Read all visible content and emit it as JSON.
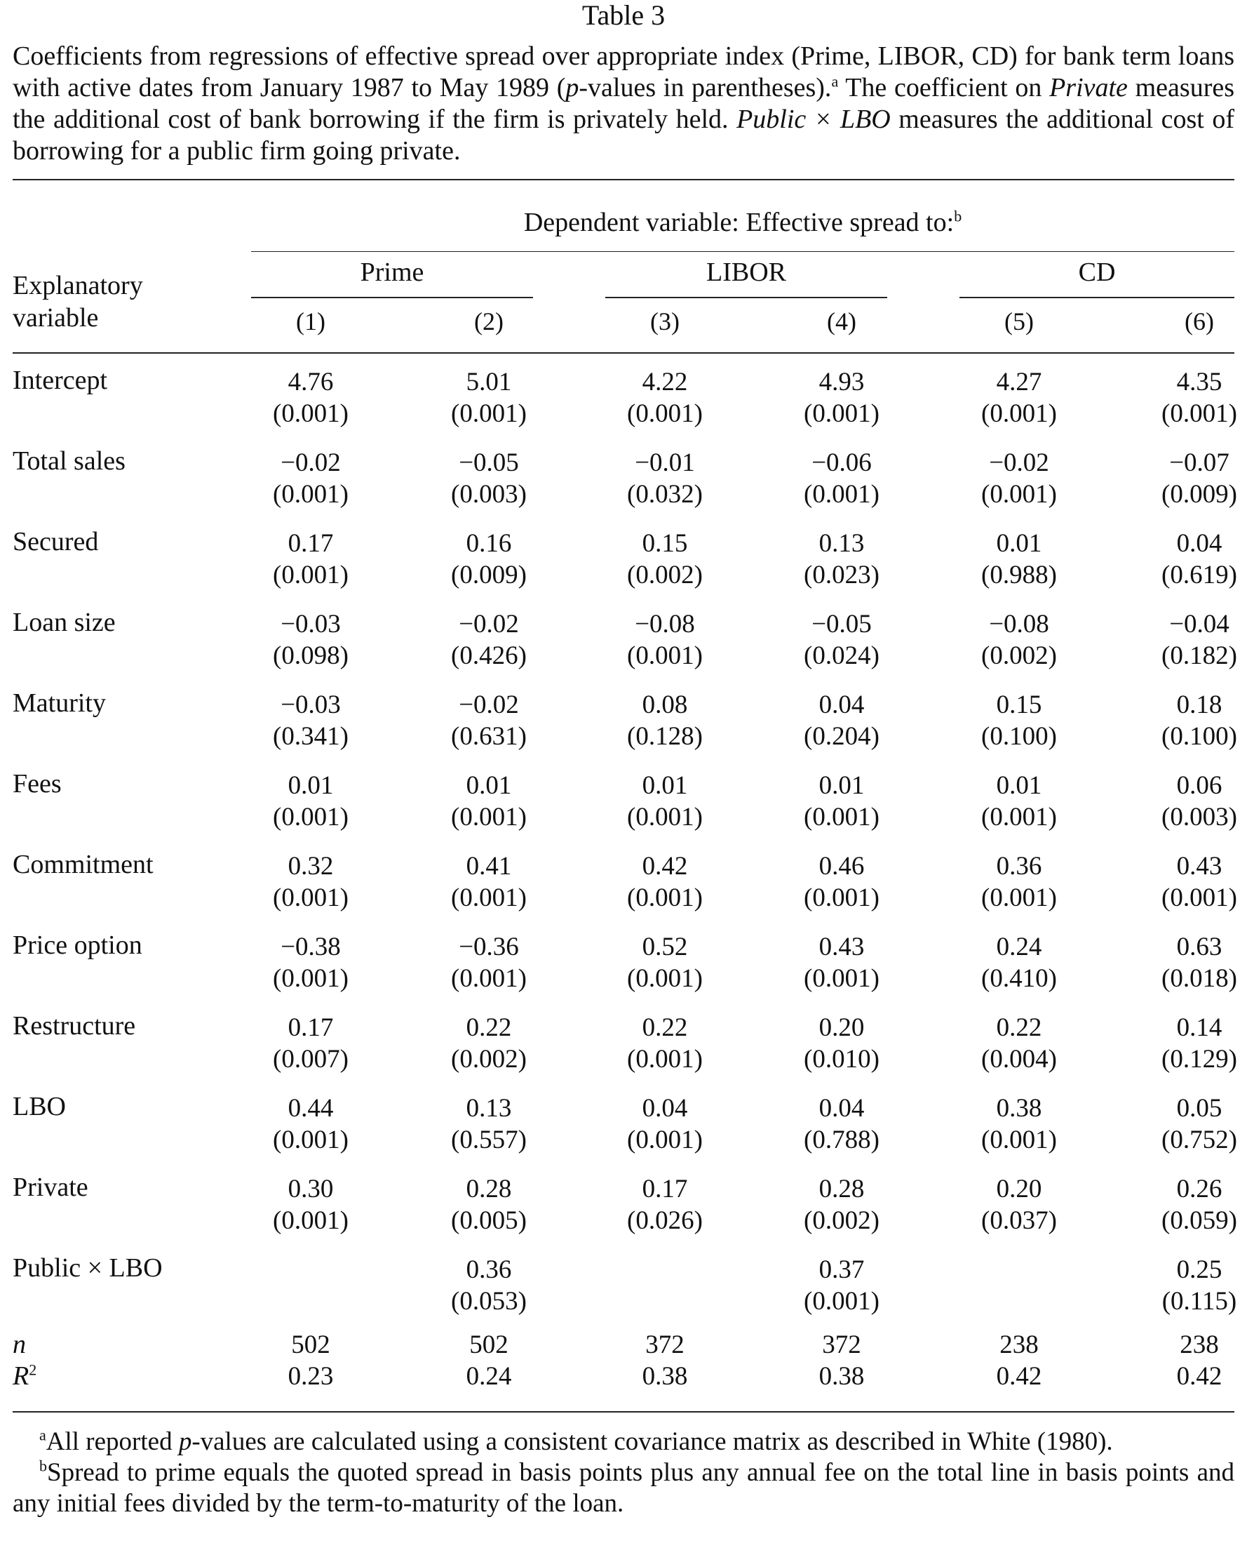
{
  "title": "Table 3",
  "caption": {
    "part1": "Coefficients from regressions of effective spread over appropriate index (Prime, LIBOR, CD) for bank term loans with active dates from January 1987 to May 1989 (",
    "p_italic": "p",
    "part2": "-values in parentheses).",
    "sup_a": "a",
    "part3": " The coefficient on ",
    "private_italic": "Private",
    "part4": " measures the additional cost of bank borrowing if the firm is privately held. ",
    "public_lbo_italic": "Public × LBO",
    "part5": " measures the additional cost of borrowing for a public firm going private."
  },
  "header": {
    "dependent_variable": "Dependent variable: Effective spread to:",
    "sup_b": "b",
    "explanatory_line1": "Explanatory",
    "explanatory_line2": "variable",
    "groups": [
      "Prime",
      "LIBOR",
      "CD"
    ],
    "columns": [
      "(1)",
      "(2)",
      "(3)",
      "(4)",
      "(5)",
      "(6)"
    ]
  },
  "rows": [
    {
      "label": "Intercept",
      "coef": [
        "4.76",
        "5.01",
        "4.22",
        "4.93",
        "4.27",
        "4.35"
      ],
      "p": [
        "(0.001)",
        "(0.001)",
        "(0.001)",
        "(0.001)",
        "(0.001)",
        "(0.001)"
      ]
    },
    {
      "label": "Total sales",
      "coef": [
        "−0.02",
        "−0.05",
        "−0.01",
        "−0.06",
        "−0.02",
        "−0.07"
      ],
      "p": [
        "(0.001)",
        "(0.003)",
        "(0.032)",
        "(0.001)",
        "(0.001)",
        "(0.009)"
      ]
    },
    {
      "label": "Secured",
      "coef": [
        "0.17",
        "0.16",
        "0.15",
        "0.13",
        "0.01",
        "0.04"
      ],
      "p": [
        "(0.001)",
        "(0.009)",
        "(0.002)",
        "(0.023)",
        "(0.988)",
        "(0.619)"
      ]
    },
    {
      "label": "Loan size",
      "coef": [
        "−0.03",
        "−0.02",
        "−0.08",
        "−0.05",
        "−0.08",
        "−0.04"
      ],
      "p": [
        "(0.098)",
        "(0.426)",
        "(0.001)",
        "(0.024)",
        "(0.002)",
        "(0.182)"
      ]
    },
    {
      "label": "Maturity",
      "coef": [
        "−0.03",
        "−0.02",
        "0.08",
        "0.04",
        "0.15",
        "0.18"
      ],
      "p": [
        "(0.341)",
        "(0.631)",
        "(0.128)",
        "(0.204)",
        "(0.100)",
        "(0.100)"
      ]
    },
    {
      "label": "Fees",
      "coef": [
        "0.01",
        "0.01",
        "0.01",
        "0.01",
        "0.01",
        "0.06"
      ],
      "p": [
        "(0.001)",
        "(0.001)",
        "(0.001)",
        "(0.001)",
        "(0.001)",
        "(0.003)"
      ]
    },
    {
      "label": "Commitment",
      "coef": [
        "0.32",
        "0.41",
        "0.42",
        "0.46",
        "0.36",
        "0.43"
      ],
      "p": [
        "(0.001)",
        "(0.001)",
        "(0.001)",
        "(0.001)",
        "(0.001)",
        "(0.001)"
      ]
    },
    {
      "label": "Price option",
      "coef": [
        "−0.38",
        "−0.36",
        "0.52",
        "0.43",
        "0.24",
        "0.63"
      ],
      "p": [
        "(0.001)",
        "(0.001)",
        "(0.001)",
        "(0.001)",
        "(0.410)",
        "(0.018)"
      ]
    },
    {
      "label": "Restructure",
      "coef": [
        "0.17",
        "0.22",
        "0.22",
        "0.20",
        "0.22",
        "0.14"
      ],
      "p": [
        "(0.007)",
        "(0.002)",
        "(0.001)",
        "(0.010)",
        "(0.004)",
        "(0.129)"
      ]
    },
    {
      "label": "LBO",
      "coef": [
        "0.44",
        "0.13",
        "0.04",
        "0.04",
        "0.38",
        "0.05"
      ],
      "p": [
        "(0.001)",
        "(0.557)",
        "(0.001)",
        "(0.788)",
        "(0.001)",
        "(0.752)"
      ]
    },
    {
      "label": "Private",
      "coef": [
        "0.30",
        "0.28",
        "0.17",
        "0.28",
        "0.20",
        "0.26"
      ],
      "p": [
        "(0.001)",
        "(0.005)",
        "(0.026)",
        "(0.002)",
        "(0.037)",
        "(0.059)"
      ]
    },
    {
      "label": "Public × LBO",
      "coef": [
        "",
        "0.36",
        "",
        "0.37",
        "",
        "0.25"
      ],
      "p": [
        "",
        "(0.053)",
        "",
        "(0.001)",
        "",
        "(0.115)"
      ]
    }
  ],
  "stats": {
    "n_label": "n",
    "n": [
      "502",
      "502",
      "372",
      "372",
      "238",
      "238"
    ],
    "r2_label": "R",
    "r2_sup": "2",
    "r2": [
      "0.23",
      "0.24",
      "0.38",
      "0.38",
      "0.42",
      "0.42"
    ]
  },
  "footnotes": {
    "a_mark": "a",
    "a_pre": "All reported ",
    "a_italic": "p",
    "a_post": "-values are calculated using a consistent covariance matrix as described in White (1980).",
    "b_mark": "b",
    "b_text": "Spread to prime equals the quoted spread in basis points plus any annual fee on the total line in basis points and any initial fees divided by the term-to-maturity of the loan."
  }
}
